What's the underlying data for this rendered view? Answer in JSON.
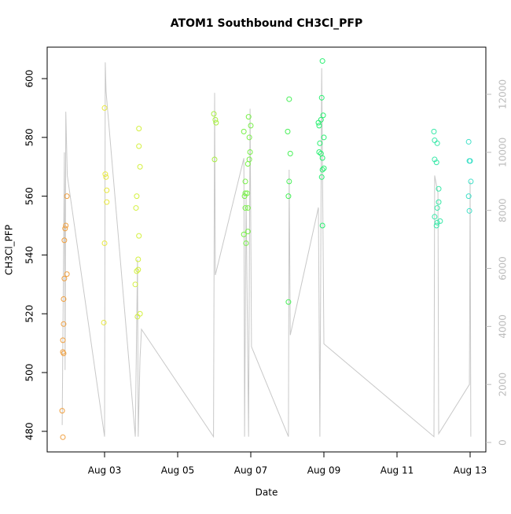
{
  "chart_data": {
    "type": "scatter",
    "title": "ATOM1 Southbound CH3Cl_PFP",
    "xlabel": "Date",
    "ylabel": "CH3Cl_PFP",
    "xlim": [
      1.43,
      13.43
    ],
    "xticks": [
      {
        "value": 3,
        "label": "Aug 03"
      },
      {
        "value": 5,
        "label": "Aug 05"
      },
      {
        "value": 7,
        "label": "Aug 07"
      },
      {
        "value": 9,
        "label": "Aug 09"
      },
      {
        "value": 11,
        "label": "Aug 11"
      },
      {
        "value": 13,
        "label": "Aug 13"
      }
    ],
    "ylim": [
      473,
      610.7
    ],
    "yticks": [
      480,
      500,
      520,
      540,
      560,
      580,
      600
    ],
    "y2lim": [
      -325,
      13625
    ],
    "y2ticks": [
      0,
      2000,
      4000,
      6000,
      8000,
      10000,
      12000
    ],
    "series": [
      {
        "color": "#f0a040",
        "x": [
          1.86,
          1.84,
          1.88,
          1.86,
          1.86,
          1.88,
          1.88,
          1.9,
          1.97,
          1.9,
          1.92,
          1.94,
          1.97
        ],
        "values": [
          478,
          487,
          506.5,
          507,
          511,
          516.5,
          525,
          532,
          533.5,
          545,
          549,
          550,
          560
        ]
      },
      {
        "color": "#e8e840",
        "x": [
          3.0,
          2.98,
          3.0,
          3.04,
          3.02,
          3.06,
          3.06
        ],
        "values": [
          590,
          517,
          544,
          566.5,
          567.5,
          562,
          558
        ]
      },
      {
        "color": "#d4f040",
        "x": [
          3.84,
          3.88,
          3.92,
          3.92,
          3.94,
          3.9,
          3.97,
          3.86,
          3.88,
          3.94,
          3.97,
          3.94
        ],
        "values": [
          530,
          534.5,
          535,
          538.5,
          546.5,
          519,
          520,
          556,
          560,
          577,
          570,
          583
        ]
      },
      {
        "color": "#a8f040",
        "x": [
          5.99,
          6.03,
          6.05,
          6.01
        ],
        "values": [
          588,
          586,
          585,
          572.5
        ]
      },
      {
        "color": "#78f048",
        "x": [
          6.81,
          6.83,
          6.85,
          6.9,
          6.81,
          6.87,
          6.92,
          6.85,
          6.92,
          6.85,
          6.94,
          6.96,
          7.0,
          6.98,
          6.96,
          6.92
        ],
        "values": [
          582,
          560,
          561,
          561,
          547,
          544,
          548,
          556,
          556,
          565,
          587,
          580,
          584,
          575,
          572.5,
          571
        ]
      },
      {
        "color": "#48f058",
        "x": [
          8.01,
          8.05,
          8.08,
          8.03,
          8.05,
          8.03
        ],
        "values": [
          582,
          593,
          574.5,
          560,
          565,
          524
        ]
      },
      {
        "color": "#28f070",
        "x": [
          8.96,
          8.94,
          8.92,
          8.85,
          8.87,
          8.89,
          8.87,
          8.92,
          8.96,
          8.98,
          9.0,
          8.96,
          8.94,
          8.96,
          9.0
        ],
        "values": [
          606,
          593.5,
          586,
          585,
          584,
          578,
          575,
          574.5,
          573,
          587.5,
          580,
          569,
          566.5,
          550,
          569.5
        ]
      },
      {
        "color": "#38e8a8",
        "x": [
          12.01,
          12.03,
          12.1,
          12.03,
          12.08,
          12.14,
          12.14,
          12.1,
          12.03,
          12.08,
          12.1,
          12.18
        ],
        "values": [
          582,
          579,
          578,
          572.5,
          571.5,
          562.5,
          558,
          556,
          553,
          550,
          551,
          551.5
        ]
      },
      {
        "color": "#40e0c8",
        "x": [
          12.96,
          12.98,
          13.0,
          12.96,
          13.02,
          12.98
        ],
        "values": [
          578.5,
          572,
          572,
          560,
          565,
          555
        ]
      },
      {
        "type": "line",
        "axis": "y2",
        "color": "#c8c8c8",
        "x": [
          1.84,
          1.9,
          1.92,
          1.94,
          1.98,
          3.0,
          3.02,
          3.04,
          3.84,
          3.9,
          3.92,
          3.97,
          4.01,
          5.98,
          6.01,
          6.03,
          6.81,
          6.83,
          6.87,
          6.94,
          6.98,
          7.02,
          8.03,
          8.05,
          8.08,
          8.85,
          8.89,
          8.94,
          9.0,
          12.01,
          12.03,
          12.12,
          12.14,
          12.98,
          13.0,
          13.02
        ],
        "values": [
          600,
          10000,
          2500,
          11400,
          9200,
          200,
          13100,
          12100,
          200,
          6300,
          200,
          2900,
          3900,
          200,
          12050,
          5770,
          9800,
          200,
          8500,
          200,
          11500,
          3300,
          200,
          9400,
          3700,
          8100,
          200,
          12900,
          3400,
          200,
          9200,
          8600,
          300,
          2000,
          9000,
          200
        ]
      }
    ]
  }
}
